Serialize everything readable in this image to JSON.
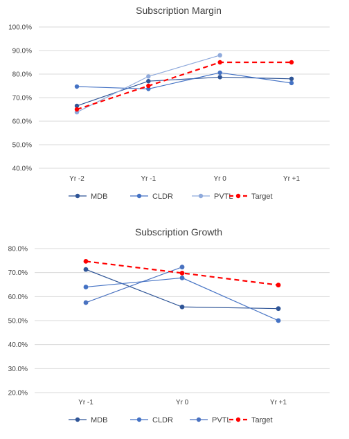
{
  "colors": {
    "MDB": "#2f5597",
    "CLDR": "#4472c4",
    "PVTL": "#8faadc",
    "PVTL_growth": "#4a72c0",
    "Target": "#ff0000",
    "grid": "#d9d9d9",
    "text": "#404040"
  },
  "chart_data": [
    {
      "type": "line",
      "title": "Subscription Margin",
      "categories": [
        "Yr -2",
        "Yr -1",
        "Yr 0",
        "Yr +1"
      ],
      "yticks": [
        "100.0%",
        "90.0%",
        "80.0%",
        "70.0%",
        "60.0%",
        "50.0%",
        "40.0%"
      ],
      "ylim": [
        0.4,
        1.0
      ],
      "grid": true,
      "legend_position": "bottom",
      "series": [
        {
          "name": "MDB",
          "values": [
            0.665,
            0.77,
            0.787,
            0.78
          ]
        },
        {
          "name": "CLDR",
          "values": [
            0.747,
            0.737,
            0.806,
            0.762
          ]
        },
        {
          "name": "PVTL",
          "values": [
            0.638,
            0.79,
            0.88,
            null
          ]
        },
        {
          "name": "Target",
          "values": [
            0.65,
            0.75,
            0.85,
            0.85
          ]
        }
      ]
    },
    {
      "type": "line",
      "title": "Subscription Growth",
      "categories": [
        "Yr -1",
        "Yr 0",
        "Yr +1"
      ],
      "yticks": [
        "80.0%",
        "70.0%",
        "60.0%",
        "50.0%",
        "40.0%",
        "30.0%",
        "20.0%"
      ],
      "ylim": [
        0.2,
        0.8
      ],
      "grid": true,
      "legend_position": "bottom",
      "series": [
        {
          "name": "MDB",
          "values": [
            0.713,
            0.557,
            0.55
          ]
        },
        {
          "name": "CLDR",
          "values": [
            0.64,
            0.678,
            0.5
          ]
        },
        {
          "name": "PVTL",
          "values": [
            0.575,
            0.723,
            null
          ]
        },
        {
          "name": "Target",
          "values": [
            0.747,
            0.698,
            0.648
          ]
        }
      ]
    }
  ]
}
